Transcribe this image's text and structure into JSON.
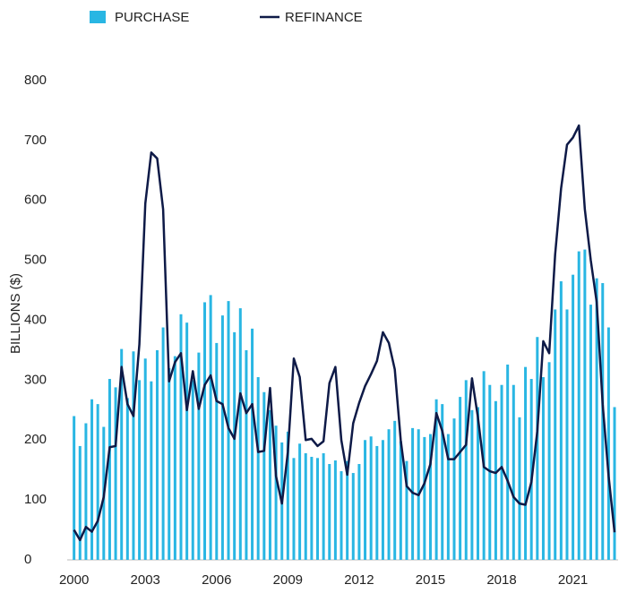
{
  "chart_data": {
    "type": "bar_line",
    "y_label": "BILLIONS ($)",
    "x": [
      2000,
      2000.25,
      2000.5,
      2000.75,
      2001,
      2001.25,
      2001.5,
      2001.75,
      2002,
      2002.25,
      2002.5,
      2002.75,
      2003,
      2003.25,
      2003.5,
      2003.75,
      2004,
      2004.25,
      2004.5,
      2004.75,
      2005,
      2005.25,
      2005.5,
      2005.75,
      2006,
      2006.25,
      2006.5,
      2006.75,
      2007,
      2007.25,
      2007.5,
      2007.75,
      2008,
      2008.25,
      2008.5,
      2008.75,
      2009,
      2009.25,
      2009.5,
      2009.75,
      2010,
      2010.25,
      2010.5,
      2010.75,
      2011,
      2011.25,
      2011.5,
      2011.75,
      2012,
      2012.25,
      2012.5,
      2012.75,
      2013,
      2013.25,
      2013.5,
      2013.75,
      2014,
      2014.25,
      2014.5,
      2014.75,
      2015,
      2015.25,
      2015.5,
      2015.75,
      2016,
      2016.25,
      2016.5,
      2016.75,
      2017,
      2017.25,
      2017.5,
      2017.75,
      2018,
      2018.25,
      2018.5,
      2018.75,
      2019,
      2019.25,
      2019.5,
      2019.75,
      2020,
      2020.25,
      2020.5,
      2020.75,
      2021,
      2021.25,
      2021.5,
      2021.75,
      2022,
      2022.25,
      2022.5,
      2022.75
    ],
    "series": [
      {
        "name": "PURCHASE",
        "type": "bar",
        "color": "#29b6e3",
        "values": [
          240,
          190,
          228,
          268,
          260,
          222,
          302,
          288,
          352,
          270,
          348,
          300,
          336,
          298,
          350,
          388,
          320,
          340,
          410,
          396,
          300,
          346,
          430,
          442,
          362,
          408,
          432,
          380,
          420,
          350,
          386,
          305,
          280,
          250,
          224,
          196,
          214,
          170,
          194,
          178,
          172,
          170,
          178,
          160,
          166,
          148,
          165,
          145,
          160,
          200,
          206,
          190,
          200,
          218,
          232,
          198,
          165,
          220,
          218,
          205,
          210,
          268,
          260,
          210,
          236,
          272,
          300,
          250,
          255,
          315,
          292,
          265,
          292,
          326,
          292,
          238,
          322,
          302,
          372,
          305,
          330,
          418,
          465,
          418,
          476,
          515,
          518,
          426,
          470,
          462,
          388,
          255
        ]
      },
      {
        "name": "REFINANCE",
        "type": "line",
        "color": "#0e1a47",
        "values": [
          50,
          33,
          55,
          47,
          65,
          105,
          188,
          190,
          322,
          260,
          240,
          360,
          595,
          680,
          670,
          585,
          298,
          330,
          345,
          250,
          315,
          252,
          292,
          308,
          265,
          260,
          220,
          202,
          278,
          245,
          260,
          180,
          182,
          287,
          140,
          94,
          180,
          336,
          305,
          200,
          202,
          190,
          198,
          295,
          322,
          200,
          142,
          228,
          262,
          290,
          310,
          332,
          380,
          362,
          318,
          200,
          123,
          112,
          108,
          128,
          160,
          245,
          215,
          168,
          168,
          180,
          192,
          303,
          238,
          155,
          148,
          145,
          155,
          132,
          105,
          94,
          92,
          130,
          215,
          365,
          345,
          510,
          620,
          693,
          705,
          725,
          585,
          500,
          430,
          260,
          140,
          46
        ]
      }
    ],
    "xlim": [
      1999.9,
      2022.9
    ],
    "xticks": [
      2000,
      2003,
      2006,
      2009,
      2012,
      2015,
      2018,
      2021
    ],
    "ylim": [
      0,
      800
    ],
    "yticks": [
      0,
      100,
      200,
      300,
      400,
      500,
      600,
      700,
      800
    ]
  }
}
